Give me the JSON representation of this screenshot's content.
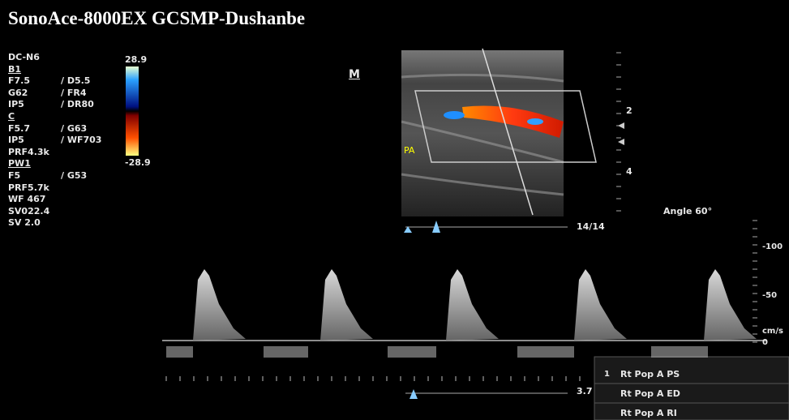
{
  "header": {
    "title": "SonoAce-8000EX GCSMP-Dushanbe"
  },
  "params": [
    [
      "DC-N6"
    ],
    [
      "B1"
    ],
    [
      "F7.5",
      "/ D5.5"
    ],
    [
      "G62",
      "/ FR4"
    ],
    [
      "IP5",
      "/ DR80"
    ],
    [
      "C"
    ],
    [
      "F5.7",
      "/ G63"
    ],
    [
      "IP5",
      "/ WF703"
    ],
    [
      "PRF4.3k"
    ],
    [
      "PW1"
    ],
    [
      "F5",
      "/ G53"
    ],
    [
      "PRF5.7k"
    ],
    [
      "WF 467"
    ],
    [
      "SV022.4"
    ],
    [
      "SV 2.0"
    ]
  ],
  "colorbar": {
    "max": "28.9",
    "min": "-28.9"
  },
  "image": {
    "mode": "M",
    "vessel": "PA",
    "depth_marks": [
      "2",
      "4"
    ],
    "frame": "14/14",
    "angle": "Angle 60°"
  },
  "doppler_scale": [
    "-100",
    "-50",
    "cm/s",
    "0"
  ],
  "sweep": "3.7",
  "measurements": [
    {
      "index": "1",
      "label": "Rt Pop A PS"
    },
    {
      "label": "Rt Pop A ED"
    },
    {
      "label": "Rt Pop A RI"
    }
  ]
}
